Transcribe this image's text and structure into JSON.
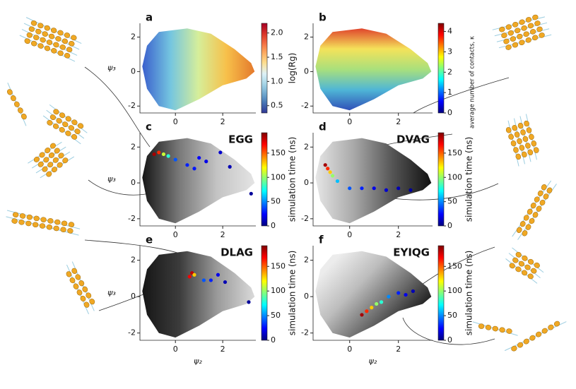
{
  "chart_data": [
    {
      "type": "scatter",
      "panel": "a",
      "xlim": [
        -1.5,
        3.4
      ],
      "ylim": [
        -2.4,
        2.8
      ],
      "xticks": [
        0,
        2
      ],
      "yticks": [
        -2,
        0,
        2
      ],
      "ylabel": "ψ₃",
      "cloud": {
        "colors": [
          "#3a5fcd",
          "#74c5e0",
          "#d6ee9a",
          "#f7c04a",
          "#e4792c"
        ],
        "angle": 0
      },
      "colorbar": {
        "label": "log(Rg)",
        "lim": [
          0.35,
          2.2
        ],
        "ticks": [
          0.5,
          {
            "value": 1,
            "label": "1.0"
          },
          1.5,
          {
            "value": 2,
            "label": "2.0"
          }
        ],
        "colormap": "RdYlBu_r"
      }
    },
    {
      "type": "scatter",
      "panel": "b",
      "xlim": [
        -1.5,
        3.4
      ],
      "ylim": [
        -2.4,
        2.8
      ],
      "xticks": [
        0,
        2
      ],
      "yticks": [
        -2,
        0,
        2
      ],
      "cloud": {
        "colors": [
          "#e0452c",
          "#f4e25a",
          "#a9e07c",
          "#4fb6d6",
          "#3050b8"
        ],
        "angle": 90
      },
      "colorbar": {
        "label": "average number of contacts, κ",
        "lim": [
          0,
          4.4
        ],
        "ticks": [
          0,
          1,
          2,
          3,
          4
        ],
        "colormap": "jet"
      }
    },
    {
      "type": "scatter",
      "panel": "c",
      "title": "EGG",
      "xlim": [
        -1.5,
        3.4
      ],
      "ylim": [
        -2.4,
        2.8
      ],
      "xticks": [
        0,
        2
      ],
      "yticks": [
        -2,
        0,
        2
      ],
      "ylabel": "ψ₃",
      "cloud": {
        "colors": [
          "#151515",
          "#7a7a7a",
          "#c4c4c4",
          "#e4e4e4"
        ],
        "angle": 0
      },
      "points": {
        "x": [
          -0.9,
          -0.7,
          -0.5,
          -0.3,
          0.0,
          0.5,
          0.8,
          1.0,
          1.3,
          1.9,
          2.3,
          3.2
        ],
        "y": [
          1.6,
          1.7,
          1.6,
          1.5,
          1.3,
          1.0,
          0.8,
          1.4,
          1.2,
          1.7,
          0.9,
          -0.6
        ],
        "t": [
          185,
          160,
          110,
          80,
          40,
          30,
          28,
          25,
          20,
          15,
          10,
          5
        ]
      },
      "colorbar": {
        "label": "simulation time (ns)",
        "lim": [
          0,
          192
        ],
        "ticks": [
          0,
          50,
          100,
          150
        ],
        "colormap": "jet"
      }
    },
    {
      "type": "scatter",
      "panel": "d",
      "title": "DVAG",
      "xlim": [
        -1.5,
        3.4
      ],
      "ylim": [
        -2.4,
        2.8
      ],
      "xticks": [
        0,
        2
      ],
      "yticks": [
        -2,
        0,
        2
      ],
      "cloud": {
        "colors": [
          "#e6e6e6",
          "#a8a8a8",
          "#555555",
          "#111111"
        ],
        "angle": 0
      },
      "points": {
        "x": [
          -1.0,
          -0.9,
          -0.8,
          -0.7,
          -0.5,
          0.0,
          0.5,
          1.0,
          1.5,
          2.0,
          2.5
        ],
        "y": [
          1.0,
          0.8,
          0.6,
          0.4,
          0.1,
          -0.3,
          -0.3,
          -0.3,
          -0.4,
          -0.3,
          -0.4
        ],
        "t": [
          185,
          160,
          130,
          100,
          60,
          40,
          30,
          20,
          15,
          10,
          5
        ]
      },
      "colorbar": {
        "label": "simulation time (ns)",
        "lim": [
          0,
          192
        ],
        "ticks": [
          0,
          50,
          100,
          150
        ],
        "colormap": "jet"
      }
    },
    {
      "type": "scatter",
      "panel": "e",
      "title": "DLAG",
      "xlim": [
        -1.5,
        3.4
      ],
      "ylim": [
        -2.4,
        2.8
      ],
      "xticks": [
        0,
        2
      ],
      "yticks": [
        -2,
        0,
        2
      ],
      "ylabel": "ψ₃",
      "xlabel": "ψ₂",
      "cloud": {
        "colors": [
          "#151515",
          "#3c3c3c",
          "#9a9a9a",
          "#dadada"
        ],
        "angle": 0
      },
      "points": {
        "x": [
          0.7,
          0.6,
          0.8,
          1.2,
          1.5,
          1.8,
          2.1,
          3.1
        ],
        "y": [
          1.3,
          1.1,
          1.2,
          0.9,
          0.9,
          1.2,
          0.8,
          -0.3
        ],
        "t": [
          180,
          170,
          130,
          40,
          30,
          20,
          10,
          5
        ]
      },
      "colorbar": {
        "label": "simulation time (ns)",
        "lim": [
          0,
          192
        ],
        "ticks": [
          0,
          50,
          100,
          150
        ],
        "colormap": "jet"
      }
    },
    {
      "type": "scatter",
      "panel": "f",
      "title": "EYIQG",
      "xlim": [
        -1.5,
        3.4
      ],
      "ylim": [
        -2.4,
        2.8
      ],
      "xticks": [
        0,
        2
      ],
      "yticks": [
        -2,
        0,
        2
      ],
      "xlabel": "ψ₂",
      "cloud": {
        "colors": [
          "#ececec",
          "#bdbdbd",
          "#6a6a6a",
          "#101010"
        ],
        "angle": 35
      },
      "points": {
        "x": [
          0.5,
          0.7,
          0.9,
          1.1,
          1.3,
          1.6,
          2.0,
          2.3,
          2.6
        ],
        "y": [
          -1.0,
          -0.8,
          -0.6,
          -0.4,
          -0.3,
          0.0,
          0.2,
          0.1,
          0.3
        ],
        "t": [
          185,
          160,
          130,
          100,
          80,
          50,
          30,
          20,
          10
        ]
      },
      "colorbar": {
        "label": "simulation time (ns)",
        "lim": [
          0,
          192
        ],
        "ticks": [
          0,
          50,
          100,
          150
        ],
        "colormap": "jet"
      }
    }
  ]
}
